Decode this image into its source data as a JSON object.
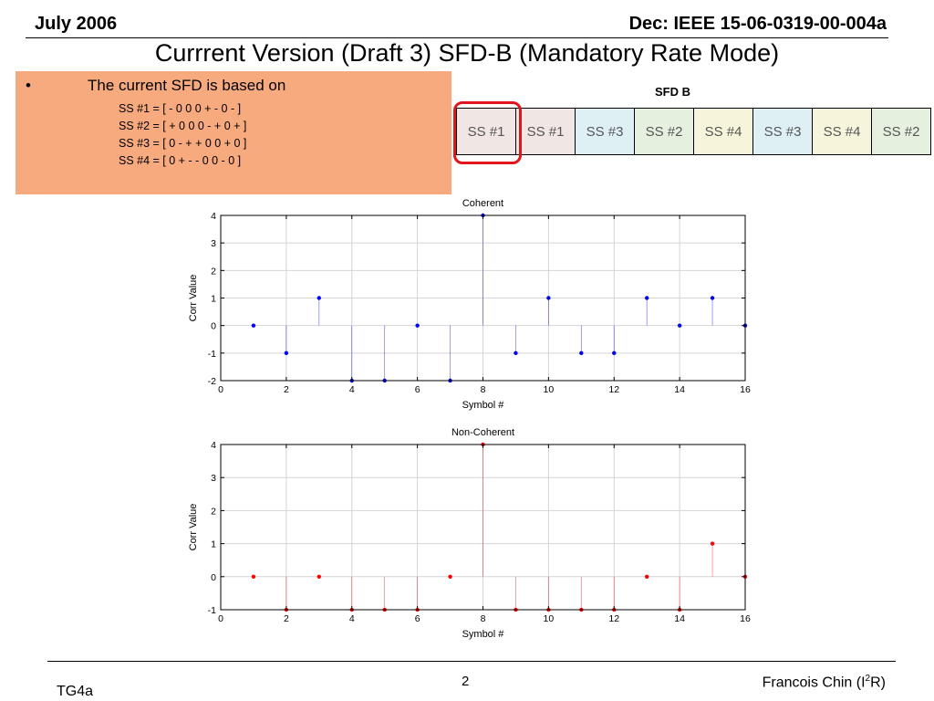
{
  "header": {
    "left": "July 2006",
    "right": "Dec: IEEE 15-06-0319-00-004a"
  },
  "title": "Currrent Version (Draft 3) SFD-B (Mandatory Rate Mode)",
  "bullet": {
    "symbol": "•",
    "text": "The current SFD is based on",
    "ss": [
      "SS #1 = [ - 0 0 0 + - 0 - ]",
      "SS #2 = [ + 0 0 0 - + 0 + ]",
      "SS #3 = [ 0 - + + 0 0 + 0 ]",
      "SS #4 = [ 0 + - - 0 0 - 0 ]"
    ]
  },
  "sfd": {
    "label": "SFD B",
    "cells": [
      {
        "label": "SS #1",
        "color": "#f0e6e4"
      },
      {
        "label": "SS #1",
        "color": "#f0e6e4"
      },
      {
        "label": "SS #3",
        "color": "#dff0f5"
      },
      {
        "label": "SS #2",
        "color": "#e5f0df"
      },
      {
        "label": "SS #4",
        "color": "#f7f4dc"
      },
      {
        "label": "SS #3",
        "color": "#dff0f5"
      },
      {
        "label": "SS #4",
        "color": "#f7f4dc"
      },
      {
        "label": "SS #2",
        "color": "#e5f0df"
      }
    ],
    "highlight_color": "#e0161c"
  },
  "chart_data": [
    {
      "type": "stem",
      "title": "Coherent",
      "xlabel": "Symbol #",
      "ylabel": "Corr Value",
      "xlim": [
        0,
        16
      ],
      "ylim": [
        -2,
        4
      ],
      "xticks": [
        0,
        2,
        4,
        6,
        8,
        10,
        12,
        14,
        16
      ],
      "yticks": [
        -2,
        -1,
        0,
        1,
        2,
        3,
        4
      ],
      "grid": true,
      "color": "#0000ff",
      "x": [
        1,
        2,
        3,
        4,
        5,
        6,
        7,
        8,
        9,
        10,
        11,
        12,
        13,
        14,
        15,
        16
      ],
      "y": [
        0,
        -1,
        1,
        -2,
        -2,
        0,
        -2,
        4,
        -1,
        1,
        -1,
        -1,
        1,
        0,
        1,
        0
      ]
    },
    {
      "type": "stem",
      "title": "Non-Coherent",
      "xlabel": "Symbol #",
      "ylabel": "Corr Value",
      "xlim": [
        0,
        16
      ],
      "ylim": [
        -1,
        4
      ],
      "xticks": [
        0,
        2,
        4,
        6,
        8,
        10,
        12,
        14,
        16
      ],
      "yticks": [
        -1,
        0,
        1,
        2,
        3,
        4
      ],
      "grid": true,
      "color": "#ff0000",
      "x": [
        1,
        2,
        3,
        4,
        5,
        6,
        7,
        8,
        9,
        10,
        11,
        12,
        13,
        14,
        15,
        16
      ],
      "y": [
        0,
        -1,
        0,
        -1,
        -1,
        -1,
        0,
        4,
        -1,
        -1,
        -1,
        -1,
        0,
        -1,
        1,
        0
      ]
    }
  ],
  "footer": {
    "left": "TG4a",
    "page": "2",
    "author_pre": "Francois Chin (I",
    "author_sup": "2",
    "author_post": "R)"
  }
}
